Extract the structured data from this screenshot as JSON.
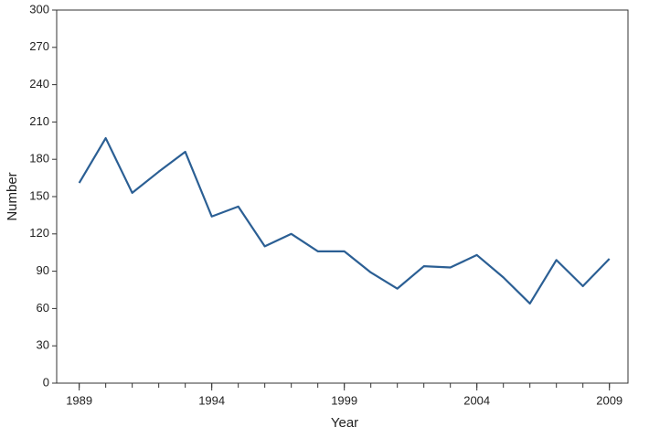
{
  "chart_data": {
    "type": "line",
    "x_label": "Year",
    "y_label": "Number",
    "x": [
      1989,
      1990,
      1991,
      1992,
      1993,
      1994,
      1995,
      1996,
      1997,
      1998,
      1999,
      2000,
      2001,
      2002,
      2003,
      2004,
      2005,
      2006,
      2007,
      2008,
      2009
    ],
    "values": [
      161,
      197,
      153,
      170,
      186,
      134,
      142,
      110,
      120,
      106,
      106,
      89,
      76,
      94,
      93,
      103,
      85,
      64,
      99,
      78,
      100
    ],
    "color": "#2b5f94",
    "xlim": [
      1988.15,
      2009.7
    ],
    "xticks": [
      1989,
      1994,
      1999,
      2004,
      2009
    ],
    "ylim": [
      0,
      300
    ],
    "yticks": [
      0,
      30,
      60,
      90,
      120,
      150,
      180,
      210,
      240,
      270,
      300
    ],
    "grid": false
  }
}
